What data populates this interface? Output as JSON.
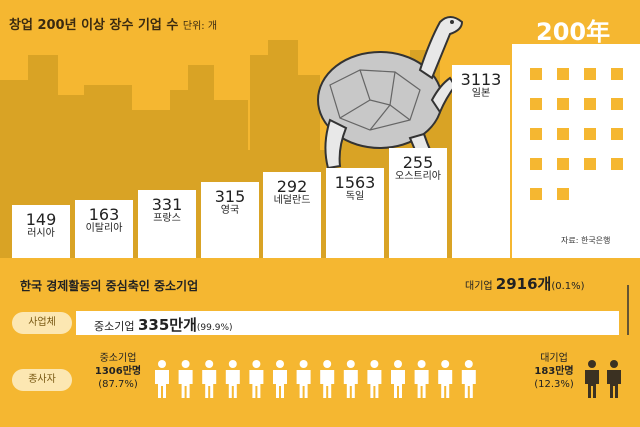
{
  "title": "창업 200년 이상 장수 기업 수",
  "unit": "단위: 개",
  "highlight_label": "200年",
  "source": "자료: 한국은행",
  "chart_data": {
    "type": "bar",
    "categories": [
      "러시아",
      "이탈리아",
      "프랑스",
      "영국",
      "네덜란드",
      "독일",
      "오스트리아",
      "일본"
    ],
    "values": [
      149,
      163,
      331,
      315,
      292,
      1563,
      255,
      3113
    ],
    "value_labels": [
      "149",
      "163",
      "331",
      "315",
      "292",
      "1563",
      "255",
      "3113"
    ],
    "title": "창업 200년 이상 장수 기업 수",
    "ylabel": "단위: 개"
  },
  "section2": {
    "title": "한국 경제활동의 중심축인 중소기업",
    "large_company": {
      "label": "대기업",
      "value": "2916개",
      "pct": "(0.1%)"
    },
    "businesses": {
      "pill": "사업체",
      "label": "중소기업",
      "value": "335만개",
      "pct": "(99.9%)"
    },
    "employees": {
      "pill": "종사자",
      "sme": {
        "label": "중소기업",
        "value": "1306만명",
        "pct": "(87.7%)",
        "fraction": 0.877
      },
      "large": {
        "label": "대기업",
        "value": "183만명",
        "pct": "(12.3%)",
        "fraction": 0.123
      }
    }
  },
  "colors": {
    "background": "#f5b731",
    "skyline": "#d9a325",
    "step": "#ffffff",
    "person_sme": "#ffffff",
    "person_large": "#3b3122"
  }
}
